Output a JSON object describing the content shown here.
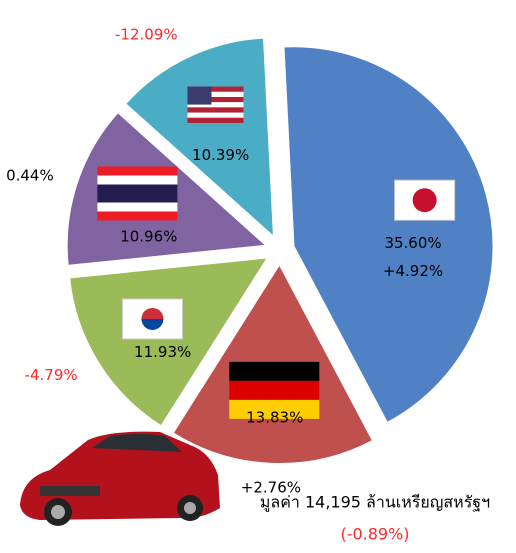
{
  "chart_data": {
    "type": "pie",
    "values": [
      35.6,
      13.83,
      11.93,
      10.96,
      10.39
    ],
    "value_labels": [
      "35.60%",
      "13.83%",
      "11.93%",
      "10.96%",
      "10.39%"
    ],
    "changes": [
      4.92,
      2.76,
      -4.79,
      0.44,
      -12.09
    ],
    "change_labels": [
      "+4.92%",
      "+2.76%",
      "-4.79%",
      "0.44%",
      "-12.09%"
    ],
    "colors": [
      "#4f81c4",
      "#c0504d",
      "#9bbb59",
      "#8064a2",
      "#4bacc6"
    ],
    "total_text": "มูลค่า 14,195 ล้านเหรียญสหรัฐฯ",
    "total_change": -0.89,
    "total_change_label": "(-0.89%)"
  }
}
